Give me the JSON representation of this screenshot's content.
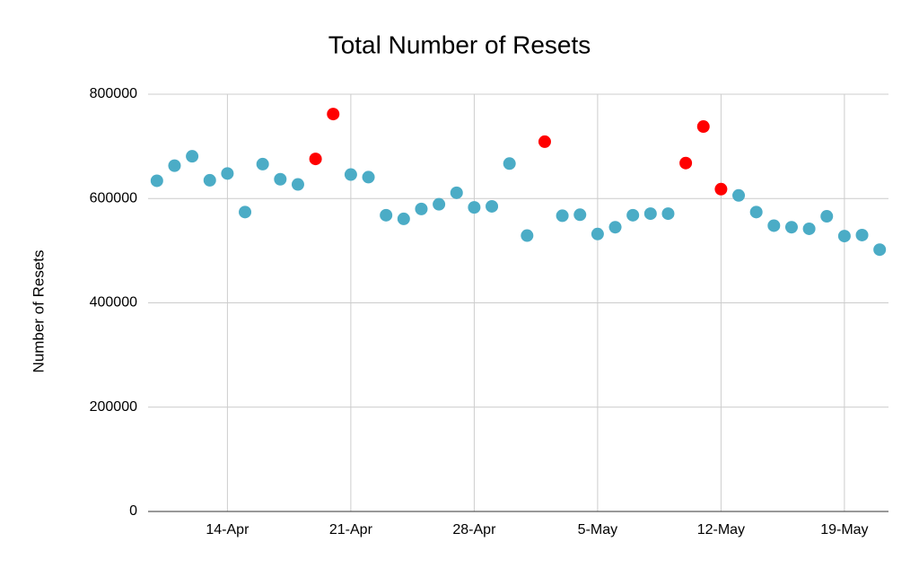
{
  "chart_data": {
    "type": "scatter",
    "title": "Total Number of Resets",
    "y_label": "Number of Resets",
    "x": [
      "10-Apr",
      "11-Apr",
      "12-Apr",
      "13-Apr",
      "14-Apr",
      "15-Apr",
      "16-Apr",
      "17-Apr",
      "18-Apr",
      "19-Apr",
      "20-Apr",
      "21-Apr",
      "22-Apr",
      "23-Apr",
      "24-Apr",
      "25-Apr",
      "26-Apr",
      "27-Apr",
      "28-Apr",
      "29-Apr",
      "30-Apr",
      "1-May",
      "2-May",
      "3-May",
      "4-May",
      "5-May",
      "6-May",
      "7-May",
      "8-May",
      "9-May",
      "10-May",
      "11-May",
      "12-May",
      "13-May",
      "14-May",
      "15-May",
      "16-May",
      "17-May",
      "18-May",
      "19-May",
      "20-May",
      "21-May"
    ],
    "values": [
      634000,
      663000,
      681000,
      635000,
      648000,
      574000,
      666000,
      637000,
      627000,
      676000,
      762000,
      646000,
      641000,
      568000,
      561000,
      580000,
      589000,
      611000,
      583000,
      585000,
      667000,
      529000,
      709000,
      567000,
      569000,
      532000,
      545000,
      568000,
      571000,
      571000,
      668000,
      738000,
      618000,
      606000,
      574000,
      548000,
      545000,
      542000,
      566000,
      528000,
      530000,
      502000
    ],
    "colors": [
      "#4bacc6",
      "#4bacc6",
      "#4bacc6",
      "#4bacc6",
      "#4bacc6",
      "#4bacc6",
      "#4bacc6",
      "#4bacc6",
      "#4bacc6",
      "#ff0000",
      "#ff0000",
      "#4bacc6",
      "#4bacc6",
      "#4bacc6",
      "#4bacc6",
      "#4bacc6",
      "#4bacc6",
      "#4bacc6",
      "#4bacc6",
      "#4bacc6",
      "#4bacc6",
      "#4bacc6",
      "#ff0000",
      "#4bacc6",
      "#4bacc6",
      "#4bacc6",
      "#4bacc6",
      "#4bacc6",
      "#4bacc6",
      "#4bacc6",
      "#ff0000",
      "#ff0000",
      "#ff0000",
      "#4bacc6",
      "#4bacc6",
      "#4bacc6",
      "#4bacc6",
      "#4bacc6",
      "#4bacc6",
      "#4bacc6",
      "#4bacc6",
      "#4bacc6"
    ],
    "xticks": [
      "14-Apr",
      "21-Apr",
      "28-Apr",
      "5-May",
      "12-May",
      "19-May"
    ],
    "ylim": [
      0,
      800000
    ],
    "yticks": [
      0,
      200000,
      400000,
      600000,
      800000
    ],
    "grid": true
  }
}
